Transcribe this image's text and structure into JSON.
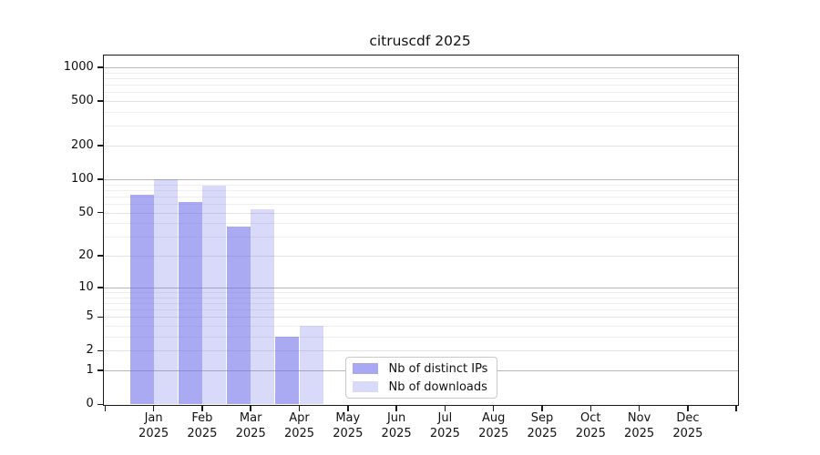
{
  "chart_data": {
    "type": "bar",
    "title": "citruscdf 2025",
    "y_scale": "log1p",
    "grid": true,
    "legend_position": "lower center",
    "categories": [
      "Jan",
      "Feb",
      "Mar",
      "Apr",
      "May",
      "Jun",
      "Jul",
      "Aug",
      "Sep",
      "Oct",
      "Nov",
      "Dec"
    ],
    "x_tick_year": "2025",
    "y_ticks": [
      0,
      1,
      2,
      5,
      10,
      20,
      50,
      100,
      200,
      500,
      1000
    ],
    "ylim": [
      0,
      1300
    ],
    "series": [
      {
        "name": "Nb of distinct IPs",
        "values": [
          72,
          62,
          37,
          3,
          0,
          0,
          0,
          0,
          0,
          0,
          0,
          0
        ],
        "fill": "rgba(110,110,235,0.59)",
        "legend_color": "#a9a9f3"
      },
      {
        "name": "Nb of downloads",
        "values": [
          100,
          88,
          54,
          4,
          0,
          0,
          0,
          0,
          0,
          0,
          0,
          0
        ],
        "fill": "rgba(110,110,235,0.26)",
        "legend_color": "#d9d9f9"
      }
    ]
  },
  "colors": {
    "background": "#ffffff",
    "spine": "#1a1a1a",
    "grid_major": "#b7b7b7",
    "grid_labeled": "#e3e3e3",
    "grid_minor": "#eeeeee",
    "text": "#111111"
  }
}
